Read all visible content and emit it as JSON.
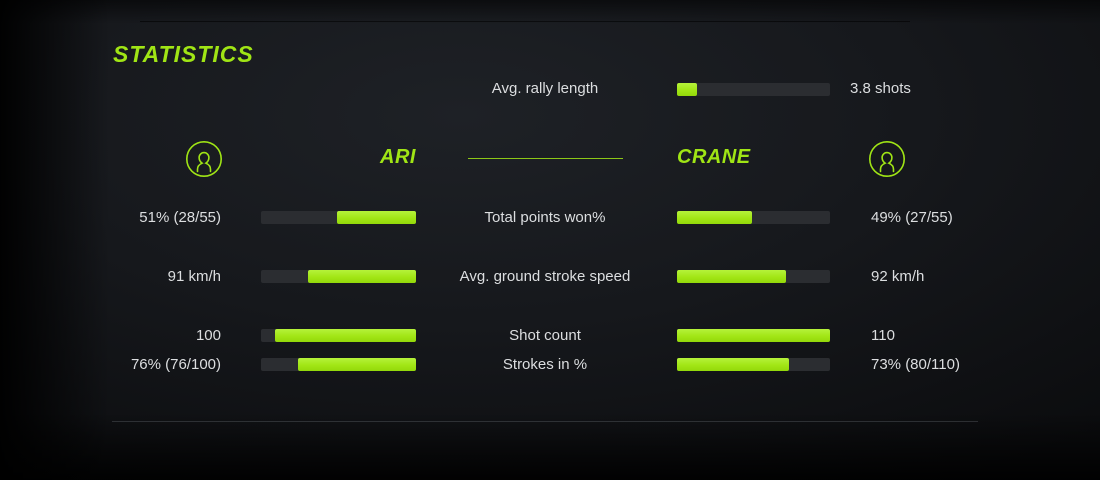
{
  "title": "STATISTICS",
  "colors": {
    "accent": "#a0e515",
    "bar_fill": "#a2e616",
    "bar_track": "#2b2d31",
    "text": "#dcdee0",
    "background": "#16181c"
  },
  "rally": {
    "label": "Avg. rally length",
    "value": "3.8 shots",
    "fill_pct": 13
  },
  "players": {
    "left": {
      "name": "ARI",
      "icon": "person-icon"
    },
    "right": {
      "name": "CRANE",
      "icon": "person-icon"
    }
  },
  "stats": [
    {
      "label": "Total points won%",
      "left_value": "51% (28/55)",
      "right_value": "49% (27/55)",
      "left_pct": 51,
      "right_pct": 49
    },
    {
      "label": "Avg. ground stroke speed",
      "left_value": "91 km/h",
      "right_value": "92 km/h",
      "left_pct": 70,
      "right_pct": 71
    },
    {
      "label": "Shot count",
      "left_value": "100",
      "right_value": "110",
      "left_pct": 91,
      "right_pct": 100
    },
    {
      "label": "Strokes in %",
      "left_value": "76% (76/100)",
      "right_value": "73% (80/110)",
      "left_pct": 76,
      "right_pct": 73
    }
  ]
}
